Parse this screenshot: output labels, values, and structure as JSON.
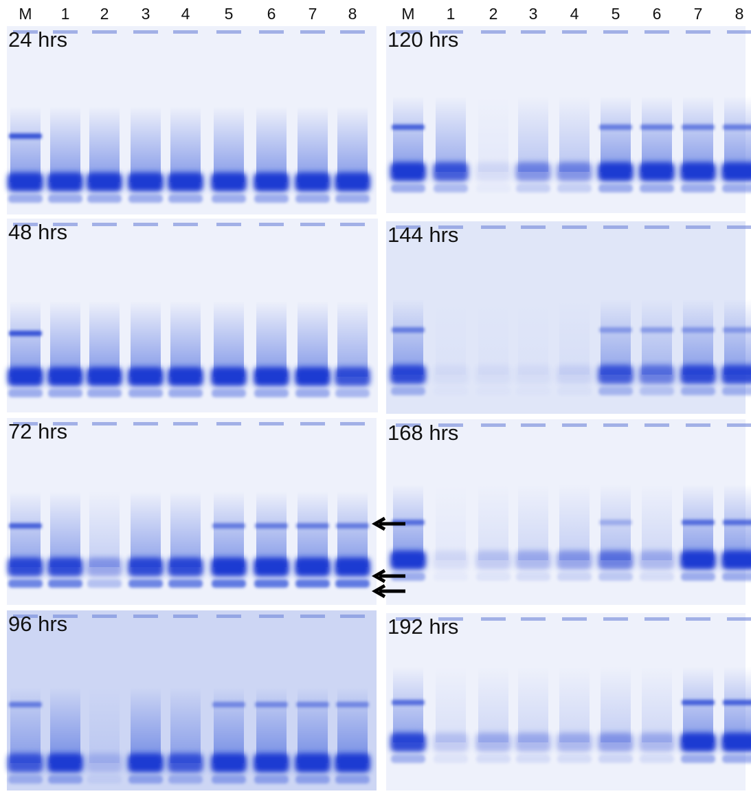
{
  "lanes": {
    "left": [
      "M",
      "1",
      "2",
      "3",
      "4",
      "5",
      "6",
      "7",
      "8"
    ],
    "right": [
      "M",
      "1",
      "2",
      "3",
      "4",
      "5",
      "6",
      "7",
      "8"
    ]
  },
  "panels": [
    {
      "label": "24 hrs"
    },
    {
      "label": "48 hrs"
    },
    {
      "label": "72 hrs"
    },
    {
      "label": "96 hrs"
    },
    {
      "label": "120 hrs"
    },
    {
      "label": "144 hrs"
    },
    {
      "label": "168 hrs"
    },
    {
      "label": "192 hrs"
    }
  ]
}
